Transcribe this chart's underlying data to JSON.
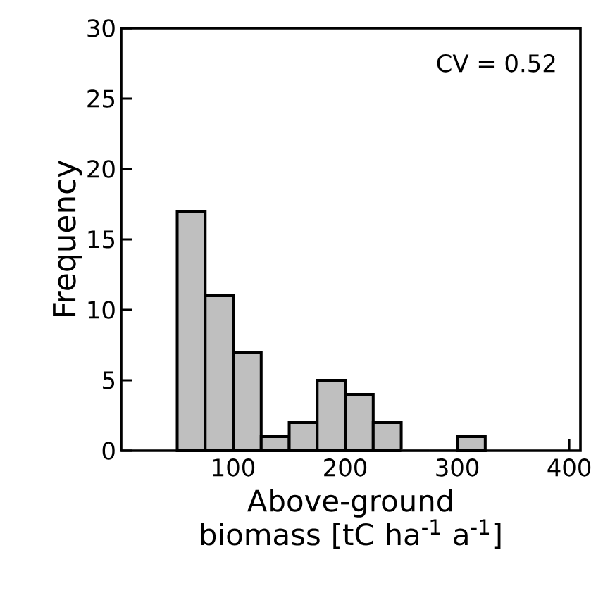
{
  "chart_data": {
    "type": "histogram",
    "xlabel": "Above-ground biomass [tC ha$^{-1}$ a$^{-1}$]",
    "ylabel": "Frequency",
    "annotations": [
      "CV = 0.52"
    ],
    "bins": [
      50,
      75,
      100,
      125,
      150,
      175,
      200,
      225,
      250,
      275,
      300,
      325
    ],
    "values": [
      17,
      11,
      7,
      1,
      2,
      5,
      4,
      2,
      0,
      0,
      1
    ],
    "color": "#bfbfbf",
    "xlim": [
      0,
      410
    ],
    "ylim": [
      0,
      30
    ],
    "xticks": [
      100,
      200,
      300,
      400
    ],
    "yticks": [
      0,
      5,
      10,
      15,
      20,
      25,
      30
    ]
  }
}
